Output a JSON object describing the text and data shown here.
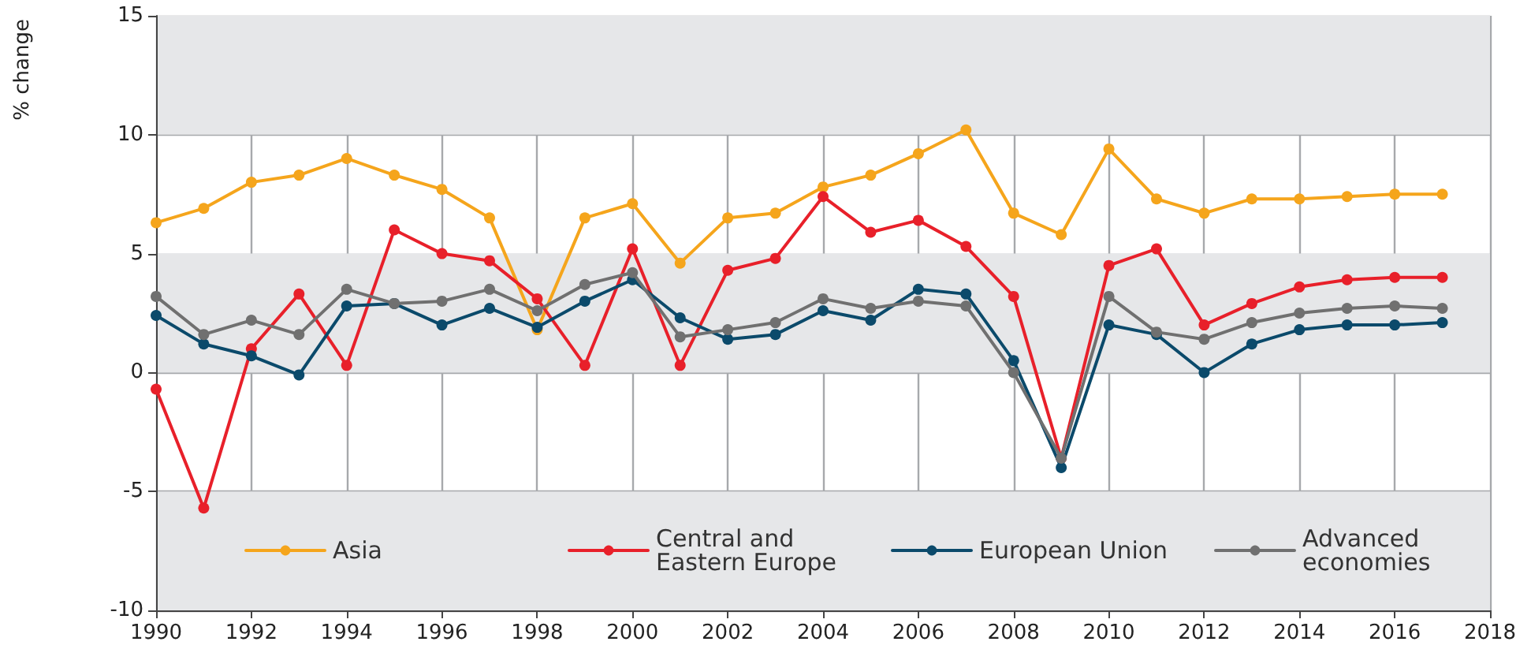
{
  "chart_data": {
    "type": "line",
    "ylabel": "% change",
    "x": [
      1990,
      1991,
      1992,
      1993,
      1994,
      1995,
      1996,
      1997,
      1998,
      1999,
      2000,
      2001,
      2002,
      2003,
      2004,
      2005,
      2006,
      2007,
      2008,
      2009,
      2010,
      2011,
      2012,
      2013,
      2014,
      2015,
      2016,
      2017
    ],
    "series": [
      {
        "name": "Asia",
        "color": "#f5a51c",
        "values": [
          6.3,
          6.9,
          8.0,
          8.3,
          9.0,
          8.3,
          7.7,
          6.5,
          1.8,
          6.5,
          7.1,
          4.6,
          6.5,
          6.7,
          7.8,
          8.3,
          9.2,
          10.2,
          6.7,
          5.8,
          9.4,
          7.3,
          6.7,
          7.3,
          7.3,
          7.4,
          7.5,
          7.5
        ]
      },
      {
        "name": "Central and Eastern Europe",
        "color": "#e8202a",
        "values": [
          -0.7,
          -5.7,
          1.0,
          3.3,
          0.3,
          6.0,
          5.0,
          4.7,
          3.1,
          0.3,
          5.2,
          0.3,
          4.3,
          4.8,
          7.4,
          5.9,
          6.4,
          5.3,
          3.2,
          -3.6,
          4.5,
          5.2,
          2.0,
          2.9,
          3.6,
          3.9,
          4.0,
          4.0
        ]
      },
      {
        "name": "European Union",
        "color": "#0b4a6b",
        "values": [
          2.4,
          1.2,
          0.7,
          -0.1,
          2.8,
          2.9,
          2.0,
          2.7,
          1.9,
          3.0,
          3.9,
          2.3,
          1.4,
          1.6,
          2.6,
          2.2,
          3.5,
          3.3,
          0.5,
          -4.0,
          2.0,
          1.6,
          0.0,
          1.2,
          1.8,
          2.0,
          2.0,
          2.1
        ]
      },
      {
        "name": "Advanced economies",
        "color": "#707070",
        "values": [
          3.2,
          1.6,
          2.2,
          1.6,
          3.5,
          2.9,
          3.0,
          3.5,
          2.6,
          3.7,
          4.2,
          1.5,
          1.8,
          2.1,
          3.1,
          2.7,
          3.0,
          2.8,
          0.0,
          -3.6,
          3.2,
          1.7,
          1.4,
          2.1,
          2.5,
          2.7,
          2.8,
          2.7
        ]
      }
    ],
    "xlim": [
      1990,
      2018
    ],
    "xticks": [
      1990,
      1992,
      1994,
      1996,
      1998,
      2000,
      2002,
      2004,
      2006,
      2008,
      2010,
      2012,
      2014,
      2016,
      2018
    ],
    "ylim": [
      -10,
      15
    ],
    "yticks": [
      -10,
      -5,
      0,
      5,
      10,
      15
    ],
    "bands": [
      {
        "axis": "y",
        "from": -10,
        "to": -5,
        "color": "#e6e7e9"
      },
      {
        "axis": "y",
        "from": 0,
        "to": 5,
        "color": "#e6e7e9"
      },
      {
        "axis": "y",
        "from": 10,
        "to": 15,
        "color": "#e6e7e9"
      }
    ],
    "grid": true,
    "legend": "bottom",
    "marker": "circle",
    "line_style": "solid"
  }
}
